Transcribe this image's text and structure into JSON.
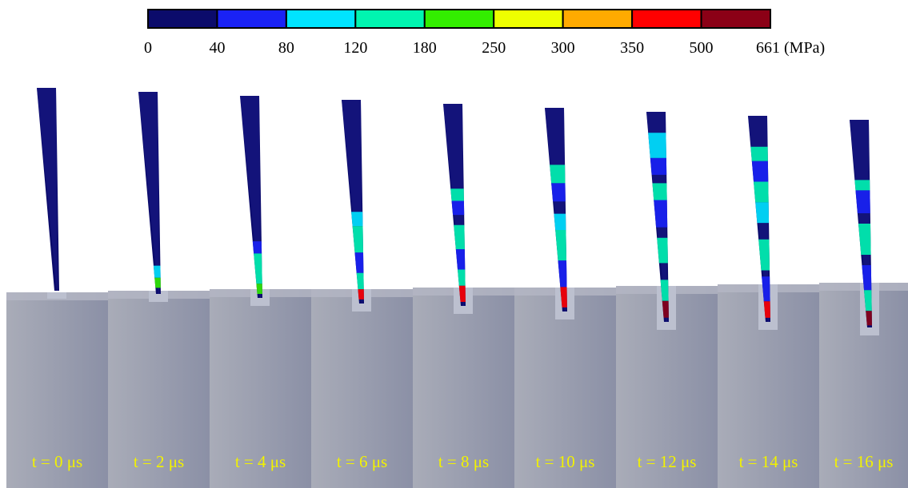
{
  "colorbar": {
    "labels": [
      "0",
      "40",
      "80",
      "120",
      "180",
      "250",
      "300",
      "350",
      "500",
      "661 (MPa)"
    ],
    "colors": [
      "#0b0b6b",
      "#1a22f5",
      "#00e4ff",
      "#00f5b0",
      "#33ee00",
      "#eeff00",
      "#ffaa00",
      "#ff0000",
      "#8b0016"
    ]
  },
  "panels": [
    {
      "label": "t = 0 μs"
    },
    {
      "label": "t = 2 μs"
    },
    {
      "label": "t = 4 μs"
    },
    {
      "label": "t = 6 μs"
    },
    {
      "label": "t = 8 μs"
    },
    {
      "label": "t = 10 μs"
    },
    {
      "label": "t = 12 μs"
    },
    {
      "label": "t = 14 μs"
    },
    {
      "label": "t = 16 μs"
    }
  ]
}
